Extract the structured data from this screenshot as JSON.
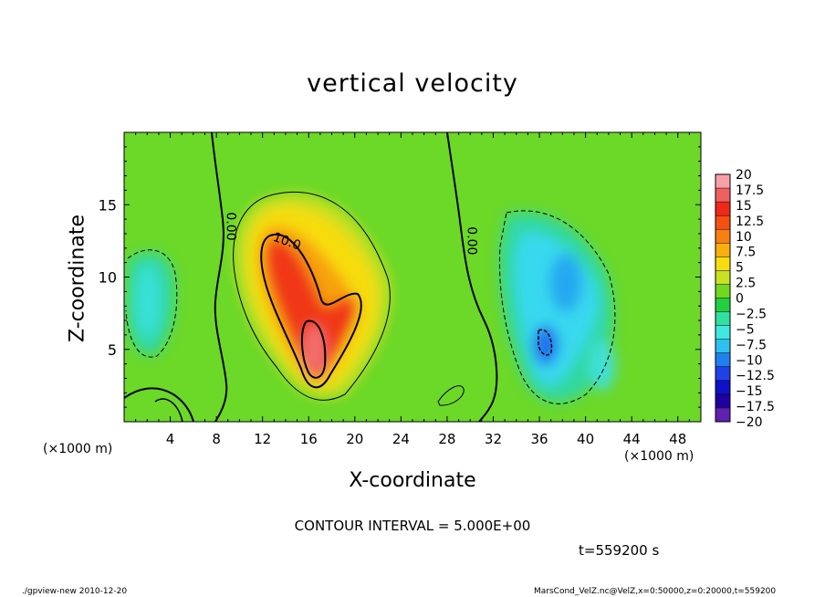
{
  "chart_data": {
    "type": "heatmap",
    "title": "vertical velocity",
    "xlabel": "X-coordinate",
    "ylabel": "Z-coordinate",
    "x_unit_left": "(×1000 m)",
    "x_unit_right": "(×1000 m)",
    "xlim": [
      0,
      50
    ],
    "ylim": [
      0,
      20
    ],
    "x_ticks": [
      4,
      8,
      12,
      16,
      20,
      24,
      28,
      32,
      36,
      40,
      44,
      48
    ],
    "y_ticks": [
      5,
      10,
      15
    ],
    "contour_interval_text": "CONTOUR INTERVAL = 5.000E+00",
    "contour_labels": [
      {
        "text": "0.00",
        "x": 8.9,
        "y": 13.5
      },
      {
        "text": "10.0",
        "x": 14.0,
        "y": 12.2
      },
      {
        "text": "0.00",
        "x": 29.8,
        "y": 12.5
      }
    ],
    "colorbar": {
      "levels": [
        "20",
        "17.5",
        "15",
        "12.5",
        "10",
        "7.5",
        "5",
        "2.5",
        "0",
        "−2.5",
        "−5",
        "−7.5",
        "−10",
        "−12.5",
        "−15",
        "−17.5",
        "−20"
      ],
      "colors": [
        "#f7a0a8",
        "#f06060",
        "#f02818",
        "#f55010",
        "#f78010",
        "#f7b010",
        "#f7dc10",
        "#c8e020",
        "#70d820",
        "#20d040",
        "#30e0a0",
        "#40e8e0",
        "#30c0f0",
        "#2080f0",
        "#2040e8",
        "#1010c8",
        "#2000a0",
        "#6020b0"
      ]
    },
    "features": [
      {
        "sign": "positive",
        "peak": 20,
        "x": 16.5,
        "z": 5.5
      },
      {
        "sign": "positive",
        "peak": 12.5,
        "x": 13.5,
        "z": 11.0
      },
      {
        "sign": "negative",
        "peak": -12.5,
        "x": 36.5,
        "z": 5.0
      },
      {
        "sign": "negative",
        "peak": -7.5,
        "x": 38.0,
        "z": 10.5
      },
      {
        "sign": "negative",
        "peak": -5,
        "x": 2.0,
        "z": 8.0
      }
    ]
  },
  "time_text": "t=559200 s",
  "footer_left": "./gpview-new   2010-12-20",
  "footer_right": "MarsCond_VelZ.nc@VelZ,x=0:50000,z=0:20000,t=559200"
}
